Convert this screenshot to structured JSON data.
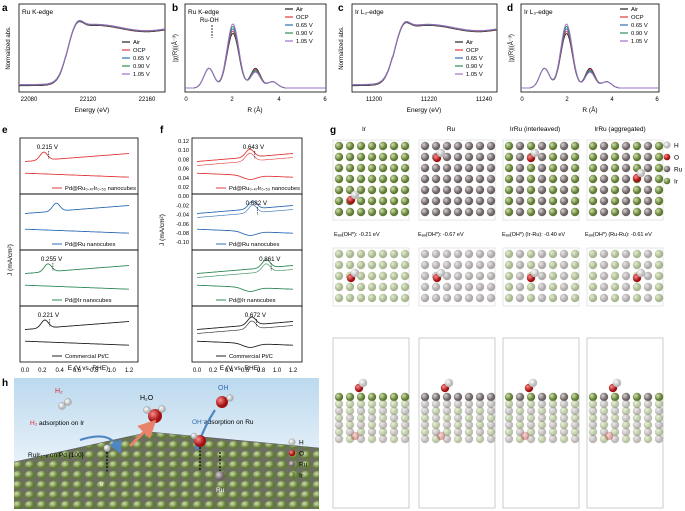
{
  "colors": {
    "air": "#222222",
    "ocp": "#e23b3b",
    "v065": "#2f6db5",
    "v090": "#2e8b57",
    "v105": "#a070c8",
    "ru": "#8a8080",
    "ir": "#8aa85a",
    "o": "#d42a2a",
    "h": "#f0f0f0"
  },
  "legend": [
    "Air",
    "OCP",
    "0.65 V",
    "0.90 V",
    "1.05 V"
  ],
  "panels": {
    "a": {
      "letter": "a",
      "title": "Ru K-edge",
      "ylabel": "Normalized abs.",
      "xlabel": "Energy (eV)",
      "ticks": [
        "22080",
        "22120",
        "22160"
      ]
    },
    "b": {
      "letter": "b",
      "title": "Ru K-edge",
      "ylabel": "|χ(R)|(Å⁻³)",
      "xlabel": "R (Å)",
      "ticks": [
        "0",
        "2",
        "4",
        "6"
      ],
      "annotation": "Ru-OH"
    },
    "c": {
      "letter": "c",
      "title": "Ir L₃-edge",
      "ylabel": "Normalized abs.",
      "xlabel": "Energy (eV)",
      "ticks": [
        "11200",
        "11220",
        "11240"
      ]
    },
    "d": {
      "letter": "d",
      "title": "Ir L₃-edge",
      "ylabel": "|χ(R)|(Å⁻³)",
      "xlabel": "R (Å)",
      "ticks": [
        "0",
        "2",
        "4",
        "6"
      ]
    },
    "e": {
      "letter": "e",
      "ylabel": "J (mA/cm²)",
      "xlabel": "E (V vs. RHE)",
      "xticks": [
        "0.0",
        "0.2",
        "0.4",
        "0.6",
        "0.8",
        "1.0",
        "1.2"
      ],
      "subs": [
        {
          "value": "0.215 V",
          "label": "Pd@Ru₀.₄₇Ir₀.₅₃ nanocubes"
        },
        {
          "value": "",
          "label": "Pd@Ru nanocubes"
        },
        {
          "value": "0.255 V",
          "label": "Pd@Ir nanocubes"
        },
        {
          "value": "0.221 V",
          "label": "Commercial Pt/C"
        }
      ]
    },
    "f": {
      "letter": "f",
      "ylabel": "J (mA/cm²)",
      "xlabel": "E (V vs. RHE)",
      "xticks": [
        "0.0",
        "0.2",
        "0.4",
        "0.6",
        "0.8",
        "1.0",
        "1.2"
      ],
      "yticks": [
        "0.12",
        "0.10",
        "0.08",
        "0.06",
        "0.04",
        "0.02",
        "0.00",
        "-0.02",
        "-0.04",
        "-0.06",
        "-0.08",
        "-0.10"
      ],
      "subs": [
        {
          "value": "0.643 V",
          "label": "Pd@Ru₀.₄₇Ir₀.₅₃ nanocubes"
        },
        {
          "value": "0.682 V",
          "label": "Pd@Ru nanocubes"
        },
        {
          "value": "0.861 V",
          "label": "Pd@Ir nanocubes"
        },
        {
          "value": "0.672 V",
          "label": "Commercial Pt/C"
        }
      ]
    },
    "g": {
      "letter": "g",
      "cols": [
        "Ir",
        "Ru",
        "IrRu (interleaved)",
        "IrRu (aggregated)"
      ],
      "energies": [
        "Eₐₔ(OH*): -0.21 eV",
        "Eₐₔ(OH*): -0.67 eV",
        "Eₐₔ(OH*) (Ir-Ru): -0.40 eV",
        "Eₐₔ(OH*) (Ru-Ru): -0.61 eV"
      ],
      "legend": [
        "H",
        "O",
        "Ru",
        "Ir"
      ]
    },
    "h": {
      "letter": "h",
      "h2_label": "H₂",
      "h2o_label": "H₂O",
      "oh_label": "OH",
      "hads_text": "adsorption on Ir",
      "ohads_text": "adsorption on Ru",
      "hads_prefix": "H₂",
      "ohads_prefix": "OH⁻",
      "surface": "RuIr₁₋ₓ on Pd {100}",
      "ir_label": "Ir",
      "ru_label": "Ru",
      "legend": [
        "H",
        "O",
        "Ru",
        "Ir"
      ]
    }
  }
}
